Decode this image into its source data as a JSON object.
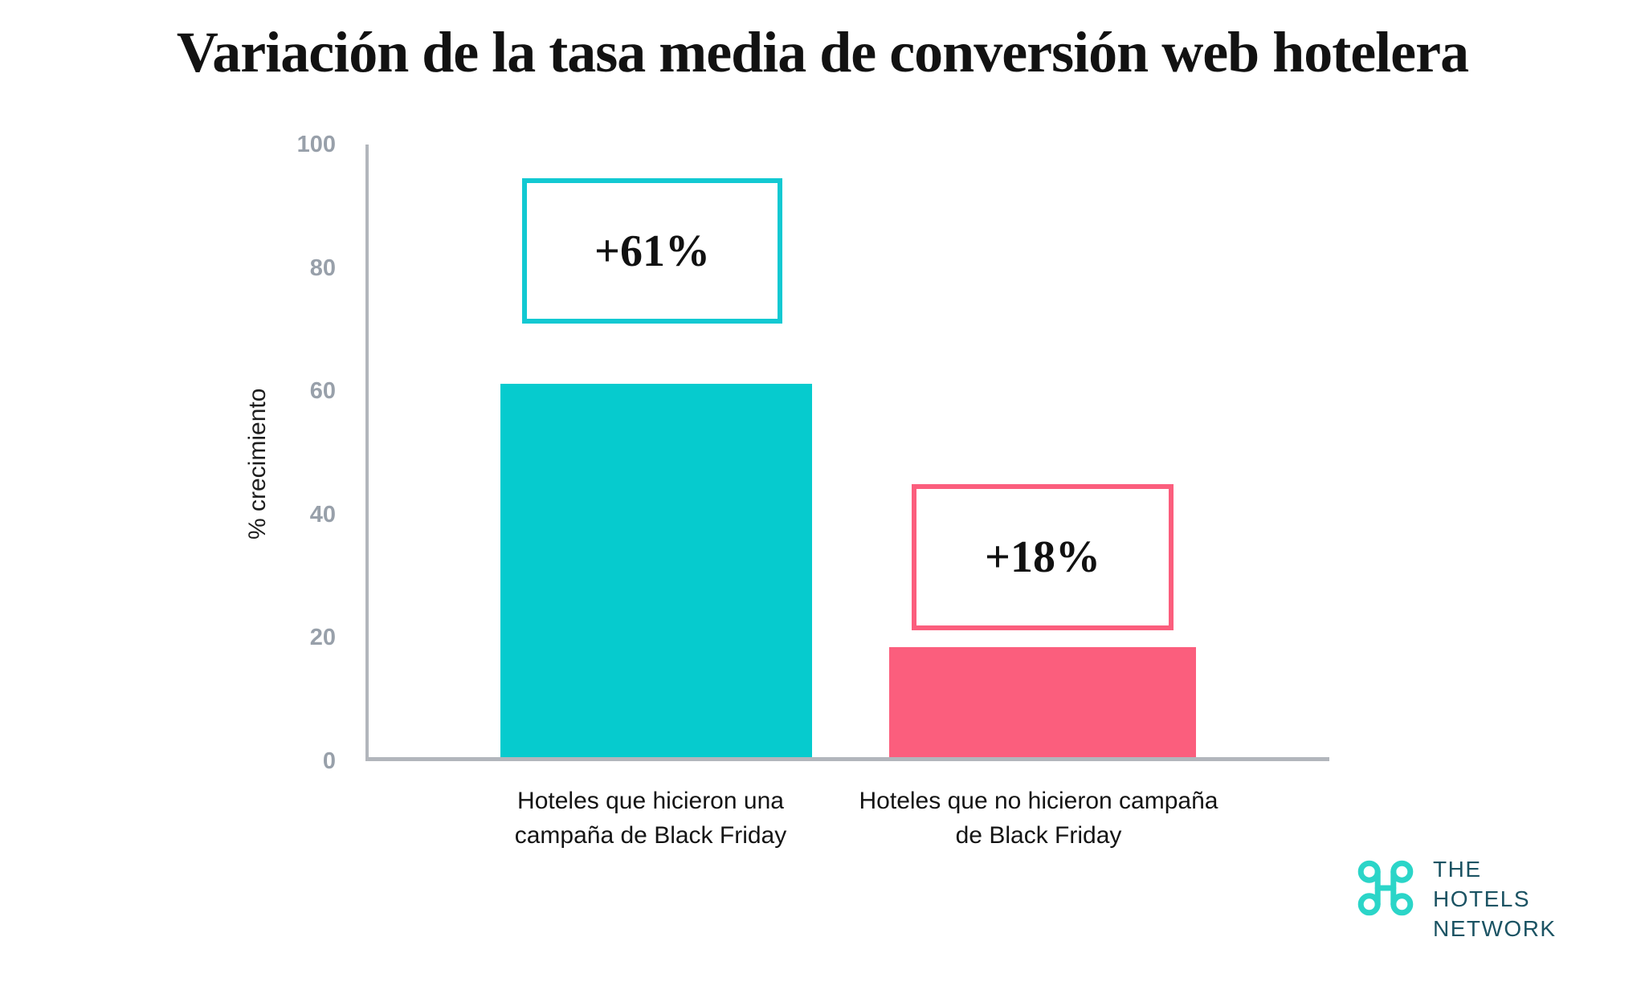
{
  "title": "Variación de la tasa media de conversión web hotelera",
  "chart_data": {
    "type": "bar",
    "title": "Variación de la tasa media de conversión web hotelera",
    "categories": [
      "Hoteles que hicieron una campaña de Black Friday",
      "Hoteles que no hicieron campaña de Black Friday"
    ],
    "cat_lines": [
      [
        "Hoteles que hicieron una",
        "campaña de Black Friday"
      ],
      [
        "Hoteles que no hicieron campaña",
        "de Black Friday"
      ]
    ],
    "values": [
      61,
      18
    ],
    "labels": [
      "+61%",
      "+18%"
    ],
    "xlabel": "",
    "ylabel": "% crecimiento",
    "yticks": [
      0,
      20,
      40,
      60,
      80,
      100
    ],
    "ylim": [
      0,
      100
    ],
    "grid": false,
    "legend": null,
    "bar_colors": [
      "#06cbce",
      "#fb5e7d"
    ],
    "annotation_border_colors": [
      "#12c9d2",
      "#fb5e7d"
    ]
  },
  "logo": {
    "icon": "thn-clover-icon",
    "icon_color": "#2bd5c8",
    "text_color": "#1b5363",
    "lines": [
      "THE",
      "HOTELS",
      "NETWORK"
    ]
  }
}
